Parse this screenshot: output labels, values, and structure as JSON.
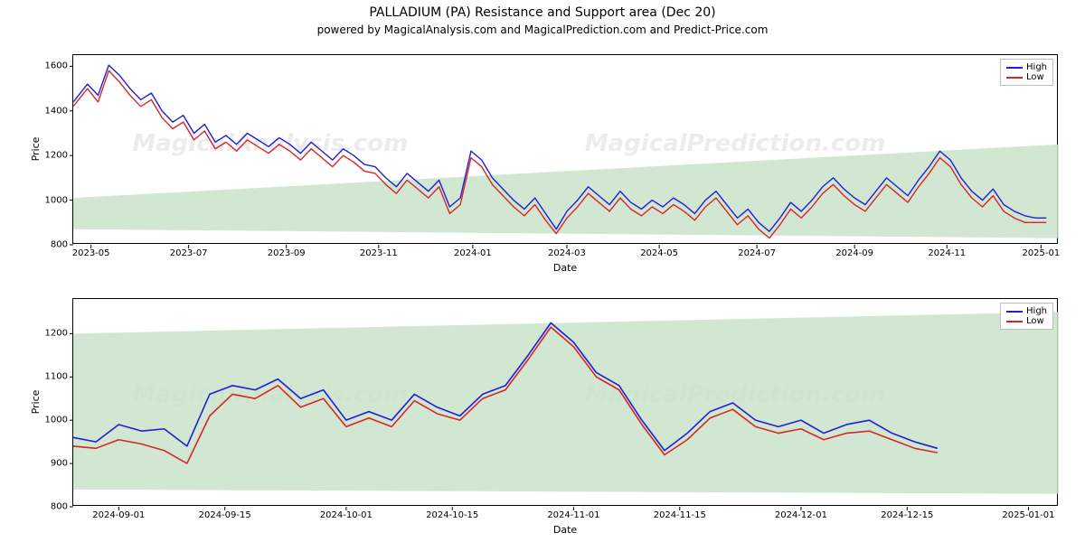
{
  "title": "PALLADIUM (PA) Resistance and Support area (Dec 20)",
  "subtitle": "powered by MagicalAnalysis.com and MagicalPrediction.com and Predict-Price.com",
  "colors": {
    "high_line": "#1f1fd6",
    "low_line": "#d62728",
    "support_fill": "#c9e3c9",
    "support_fill_opacity": 0.85,
    "axis": "#000000",
    "watermark": "rgba(200,200,200,0.35)",
    "legend_border": "#bfbfbf",
    "background": "#ffffff"
  },
  "typography": {
    "title_fontsize": 14,
    "subtitle_fontsize": 12,
    "axis_label_fontsize": 11,
    "tick_fontsize": 10,
    "watermark_fontsize": 26
  },
  "legend": {
    "high_label": "High",
    "low_label": "Low"
  },
  "watermarks": {
    "left": "MagicalAnalysis.com",
    "right": "MagicalPrediction.com"
  },
  "top_chart": {
    "type": "line",
    "xlabel": "Date",
    "ylabel": "Price",
    "ylim": [
      800,
      1650
    ],
    "yticks": [
      800,
      1000,
      1200,
      1400,
      1600
    ],
    "xlim": [
      0,
      440
    ],
    "xticks": [
      {
        "pos": 10,
        "label": "2023-05"
      },
      {
        "pos": 65,
        "label": "2023-07"
      },
      {
        "pos": 120,
        "label": "2023-09"
      },
      {
        "pos": 172,
        "label": "2023-11"
      },
      {
        "pos": 225,
        "label": "2024-01"
      },
      {
        "pos": 278,
        "label": "2024-03"
      },
      {
        "pos": 330,
        "label": "2024-05"
      },
      {
        "pos": 385,
        "label": "2024-07"
      },
      {
        "pos": 440,
        "label": "2024-09"
      },
      {
        "pos": 492,
        "label": "2024-11"
      },
      {
        "pos": 545,
        "label": "2025-01"
      }
    ],
    "xlim_actual": [
      0,
      555
    ],
    "support_band": {
      "start_low": 870,
      "start_high": 1010,
      "end_low": 830,
      "end_high": 1250
    },
    "line_width": 1.4,
    "series_high": [
      [
        0,
        1440
      ],
      [
        8,
        1520
      ],
      [
        14,
        1470
      ],
      [
        20,
        1605
      ],
      [
        26,
        1560
      ],
      [
        32,
        1500
      ],
      [
        38,
        1450
      ],
      [
        44,
        1480
      ],
      [
        50,
        1400
      ],
      [
        56,
        1350
      ],
      [
        62,
        1380
      ],
      [
        68,
        1300
      ],
      [
        74,
        1340
      ],
      [
        80,
        1260
      ],
      [
        86,
        1290
      ],
      [
        92,
        1250
      ],
      [
        98,
        1300
      ],
      [
        104,
        1270
      ],
      [
        110,
        1240
      ],
      [
        116,
        1280
      ],
      [
        122,
        1250
      ],
      [
        128,
        1210
      ],
      [
        134,
        1260
      ],
      [
        140,
        1220
      ],
      [
        146,
        1180
      ],
      [
        152,
        1230
      ],
      [
        158,
        1200
      ],
      [
        164,
        1160
      ],
      [
        170,
        1150
      ],
      [
        176,
        1100
      ],
      [
        182,
        1060
      ],
      [
        188,
        1120
      ],
      [
        194,
        1080
      ],
      [
        200,
        1040
      ],
      [
        206,
        1090
      ],
      [
        212,
        970
      ],
      [
        218,
        1010
      ],
      [
        224,
        1220
      ],
      [
        230,
        1180
      ],
      [
        236,
        1100
      ],
      [
        242,
        1050
      ],
      [
        248,
        1000
      ],
      [
        254,
        960
      ],
      [
        260,
        1010
      ],
      [
        266,
        940
      ],
      [
        272,
        870
      ],
      [
        278,
        950
      ],
      [
        284,
        1000
      ],
      [
        290,
        1060
      ],
      [
        296,
        1020
      ],
      [
        302,
        980
      ],
      [
        308,
        1040
      ],
      [
        314,
        990
      ],
      [
        320,
        960
      ],
      [
        326,
        1000
      ],
      [
        332,
        970
      ],
      [
        338,
        1010
      ],
      [
        344,
        980
      ],
      [
        350,
        940
      ],
      [
        356,
        1000
      ],
      [
        362,
        1040
      ],
      [
        368,
        980
      ],
      [
        374,
        920
      ],
      [
        380,
        960
      ],
      [
        386,
        900
      ],
      [
        392,
        860
      ],
      [
        398,
        920
      ],
      [
        404,
        990
      ],
      [
        410,
        950
      ],
      [
        416,
        1000
      ],
      [
        422,
        1060
      ],
      [
        428,
        1100
      ],
      [
        434,
        1050
      ],
      [
        440,
        1010
      ],
      [
        446,
        980
      ],
      [
        452,
        1040
      ],
      [
        458,
        1100
      ],
      [
        464,
        1060
      ],
      [
        470,
        1020
      ],
      [
        476,
        1090
      ],
      [
        482,
        1150
      ],
      [
        488,
        1220
      ],
      [
        494,
        1180
      ],
      [
        500,
        1100
      ],
      [
        506,
        1040
      ],
      [
        512,
        1000
      ],
      [
        518,
        1050
      ],
      [
        524,
        980
      ],
      [
        530,
        950
      ],
      [
        536,
        930
      ],
      [
        542,
        920
      ],
      [
        548,
        920
      ]
    ],
    "series_low": [
      [
        0,
        1420
      ],
      [
        8,
        1500
      ],
      [
        14,
        1440
      ],
      [
        20,
        1580
      ],
      [
        26,
        1530
      ],
      [
        32,
        1470
      ],
      [
        38,
        1420
      ],
      [
        44,
        1450
      ],
      [
        50,
        1370
      ],
      [
        56,
        1320
      ],
      [
        62,
        1350
      ],
      [
        68,
        1270
      ],
      [
        74,
        1310
      ],
      [
        80,
        1230
      ],
      [
        86,
        1260
      ],
      [
        92,
        1220
      ],
      [
        98,
        1270
      ],
      [
        104,
        1240
      ],
      [
        110,
        1210
      ],
      [
        116,
        1250
      ],
      [
        122,
        1220
      ],
      [
        128,
        1180
      ],
      [
        134,
        1230
      ],
      [
        140,
        1190
      ],
      [
        146,
        1150
      ],
      [
        152,
        1200
      ],
      [
        158,
        1170
      ],
      [
        164,
        1130
      ],
      [
        170,
        1120
      ],
      [
        176,
        1070
      ],
      [
        182,
        1030
      ],
      [
        188,
        1090
      ],
      [
        194,
        1050
      ],
      [
        200,
        1010
      ],
      [
        206,
        1060
      ],
      [
        212,
        940
      ],
      [
        218,
        980
      ],
      [
        224,
        1190
      ],
      [
        230,
        1150
      ],
      [
        236,
        1070
      ],
      [
        242,
        1020
      ],
      [
        248,
        970
      ],
      [
        254,
        930
      ],
      [
        260,
        980
      ],
      [
        266,
        910
      ],
      [
        272,
        850
      ],
      [
        278,
        920
      ],
      [
        284,
        970
      ],
      [
        290,
        1030
      ],
      [
        296,
        990
      ],
      [
        302,
        950
      ],
      [
        308,
        1010
      ],
      [
        314,
        960
      ],
      [
        320,
        930
      ],
      [
        326,
        970
      ],
      [
        332,
        940
      ],
      [
        338,
        980
      ],
      [
        344,
        950
      ],
      [
        350,
        910
      ],
      [
        356,
        970
      ],
      [
        362,
        1010
      ],
      [
        368,
        950
      ],
      [
        374,
        890
      ],
      [
        380,
        930
      ],
      [
        386,
        870
      ],
      [
        392,
        830
      ],
      [
        398,
        890
      ],
      [
        404,
        960
      ],
      [
        410,
        920
      ],
      [
        416,
        970
      ],
      [
        422,
        1030
      ],
      [
        428,
        1070
      ],
      [
        434,
        1020
      ],
      [
        440,
        980
      ],
      [
        446,
        950
      ],
      [
        452,
        1010
      ],
      [
        458,
        1070
      ],
      [
        464,
        1030
      ],
      [
        470,
        990
      ],
      [
        476,
        1060
      ],
      [
        482,
        1120
      ],
      [
        488,
        1190
      ],
      [
        494,
        1150
      ],
      [
        500,
        1070
      ],
      [
        506,
        1010
      ],
      [
        512,
        970
      ],
      [
        518,
        1020
      ],
      [
        524,
        950
      ],
      [
        530,
        920
      ],
      [
        536,
        900
      ],
      [
        542,
        900
      ],
      [
        548,
        900
      ]
    ]
  },
  "bottom_chart": {
    "type": "line",
    "xlabel": "Date",
    "ylabel": "Price",
    "ylim": [
      800,
      1280
    ],
    "yticks": [
      800,
      900,
      1000,
      1100,
      1200
    ],
    "xlim_actual": [
      0,
      130
    ],
    "xticks": [
      {
        "pos": 6,
        "label": "2024-09-01"
      },
      {
        "pos": 20,
        "label": "2024-09-15"
      },
      {
        "pos": 36,
        "label": "2024-10-01"
      },
      {
        "pos": 50,
        "label": "2024-10-15"
      },
      {
        "pos": 66,
        "label": "2024-11-01"
      },
      {
        "pos": 80,
        "label": "2024-11-15"
      },
      {
        "pos": 96,
        "label": "2024-12-01"
      },
      {
        "pos": 110,
        "label": "2024-12-15"
      },
      {
        "pos": 126,
        "label": "2025-01-01"
      }
    ],
    "support_band": {
      "start_low": 840,
      "start_high": 1200,
      "end_low": 830,
      "end_high": 1250
    },
    "line_width": 1.6,
    "series_high": [
      [
        0,
        960
      ],
      [
        3,
        950
      ],
      [
        6,
        990
      ],
      [
        9,
        975
      ],
      [
        12,
        980
      ],
      [
        15,
        940
      ],
      [
        18,
        1060
      ],
      [
        21,
        1080
      ],
      [
        24,
        1070
      ],
      [
        27,
        1095
      ],
      [
        30,
        1050
      ],
      [
        33,
        1070
      ],
      [
        36,
        1000
      ],
      [
        39,
        1020
      ],
      [
        42,
        1000
      ],
      [
        45,
        1060
      ],
      [
        48,
        1030
      ],
      [
        51,
        1010
      ],
      [
        54,
        1060
      ],
      [
        57,
        1080
      ],
      [
        60,
        1150
      ],
      [
        63,
        1225
      ],
      [
        66,
        1180
      ],
      [
        69,
        1110
      ],
      [
        72,
        1080
      ],
      [
        75,
        1000
      ],
      [
        78,
        930
      ],
      [
        81,
        970
      ],
      [
        84,
        1020
      ],
      [
        87,
        1040
      ],
      [
        90,
        1000
      ],
      [
        93,
        985
      ],
      [
        96,
        1000
      ],
      [
        99,
        970
      ],
      [
        102,
        990
      ],
      [
        105,
        1000
      ],
      [
        108,
        970
      ],
      [
        111,
        950
      ],
      [
        114,
        935
      ]
    ],
    "series_low": [
      [
        0,
        940
      ],
      [
        3,
        935
      ],
      [
        6,
        955
      ],
      [
        9,
        945
      ],
      [
        12,
        930
      ],
      [
        15,
        900
      ],
      [
        18,
        1010
      ],
      [
        21,
        1060
      ],
      [
        24,
        1050
      ],
      [
        27,
        1080
      ],
      [
        30,
        1030
      ],
      [
        33,
        1050
      ],
      [
        36,
        985
      ],
      [
        39,
        1005
      ],
      [
        42,
        985
      ],
      [
        45,
        1045
      ],
      [
        48,
        1015
      ],
      [
        51,
        1000
      ],
      [
        54,
        1050
      ],
      [
        57,
        1070
      ],
      [
        60,
        1140
      ],
      [
        63,
        1215
      ],
      [
        66,
        1170
      ],
      [
        69,
        1100
      ],
      [
        72,
        1070
      ],
      [
        75,
        990
      ],
      [
        78,
        920
      ],
      [
        81,
        955
      ],
      [
        84,
        1005
      ],
      [
        87,
        1025
      ],
      [
        90,
        985
      ],
      [
        93,
        970
      ],
      [
        96,
        980
      ],
      [
        99,
        955
      ],
      [
        102,
        970
      ],
      [
        105,
        975
      ],
      [
        108,
        955
      ],
      [
        111,
        935
      ],
      [
        114,
        925
      ]
    ]
  }
}
